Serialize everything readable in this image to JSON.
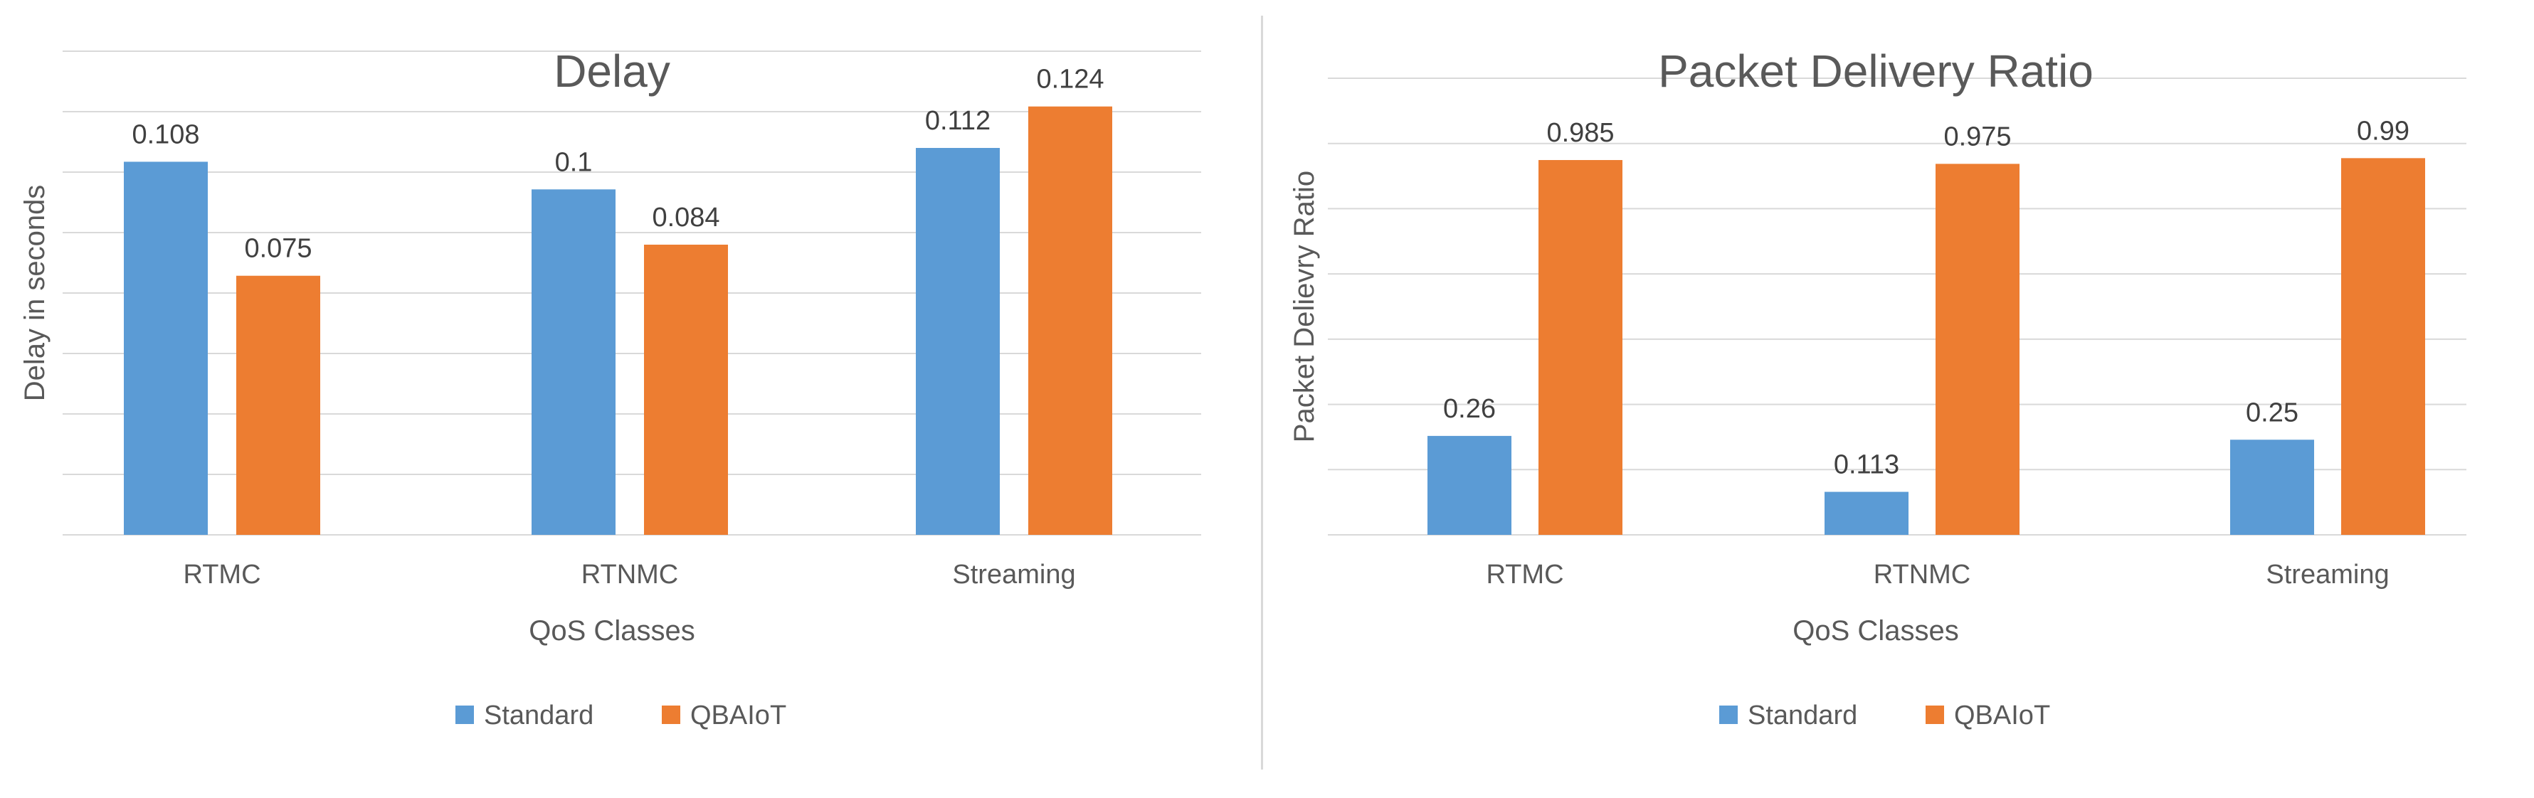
{
  "colors": {
    "standard": "#5b9bd5",
    "qbaiot": "#ed7d31"
  },
  "chart_data": [
    {
      "type": "bar",
      "title": "Delay",
      "xlabel": "QoS Classes",
      "ylabel": "Delay in seconds",
      "categories": [
        "RTMC",
        "RTNMC",
        "Streaming"
      ],
      "ylim": [
        0,
        0.14
      ],
      "grid": true,
      "legend": "bottom",
      "series": [
        {
          "name": "Standard",
          "values": [
            0.108,
            0.1,
            0.112
          ],
          "labels": [
            "0.108",
            "0.1",
            "0.112"
          ]
        },
        {
          "name": "QBAIoT",
          "values": [
            0.075,
            0.084,
            0.124
          ],
          "labels": [
            "0.075",
            "0.084",
            "0.124"
          ]
        }
      ]
    },
    {
      "type": "bar",
      "title": "Packet Delivery Ratio",
      "xlabel": "QoS Classes",
      "ylabel": "Packet Delievry Ratio",
      "categories": [
        "RTMC",
        "RTNMC",
        "Streaming"
      ],
      "ylim": [
        0,
        1.2
      ],
      "grid": true,
      "legend": "bottom",
      "series": [
        {
          "name": "Standard",
          "values": [
            0.26,
            0.113,
            0.25
          ],
          "labels": [
            "0.26",
            "0.113",
            "0.25"
          ]
        },
        {
          "name": "QBAIoT",
          "values": [
            0.985,
            0.975,
            0.99
          ],
          "labels": [
            "0.985",
            "0.975",
            "0.99"
          ]
        }
      ]
    }
  ]
}
